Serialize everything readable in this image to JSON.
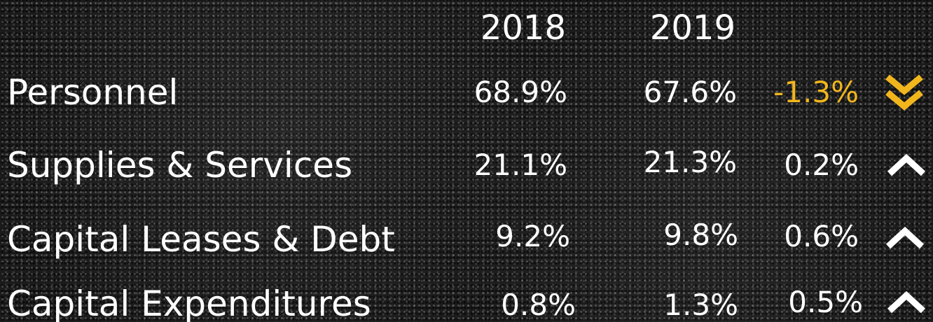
{
  "table": {
    "header": [
      "2018",
      "2019"
    ],
    "rows": [
      [
        "Personnel",
        "68.9%",
        "67.6%",
        "-1.3%"
      ],
      [
        "Supplies & Services",
        "21.1%",
        "21.3%",
        "0.2%"
      ],
      [
        "Capital Leases & Debt",
        "9.2%",
        "9.8%",
        "0.6%"
      ],
      [
        "Capital Expenditures",
        "0.8%",
        "1.3%",
        "0.5%"
      ]
    ]
  }
}
